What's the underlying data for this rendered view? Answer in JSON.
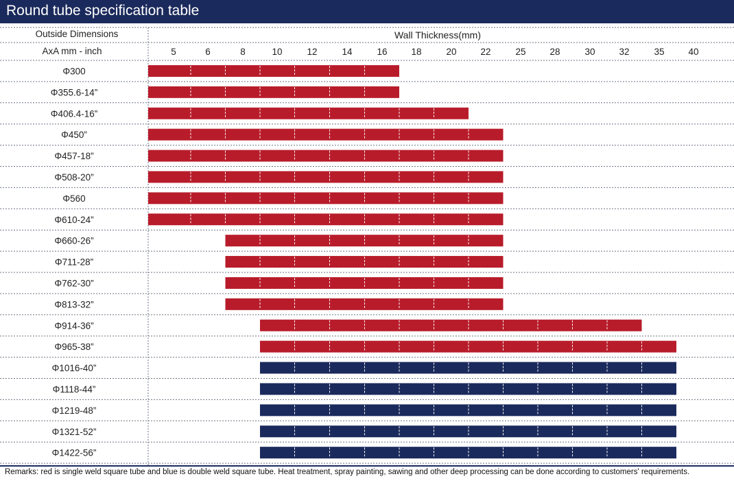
{
  "title": "Round tube specification table",
  "remarks": "Remarks: red is single weld square tube and blue is double weld square tube. Heat treatment, spray painting, sawing and other deep processing can be done according to customers' requirements.",
  "colors": {
    "single_weld": "#b81c2a",
    "double_weld": "#1b2a5c",
    "header": "#1b2a5c",
    "grid": "#6b7280"
  },
  "chart_data": {
    "type": "bar",
    "row_header_line1": "Outside Dimensions",
    "row_header_line2": "AxA  mm - inch",
    "column_header": "Wall  Thickness(mm)",
    "thickness_ticks": [
      "5",
      "6",
      "8",
      "10",
      "12",
      "14",
      "16",
      "18",
      "20",
      "22",
      "25",
      "28",
      "30",
      "32",
      "35",
      "40"
    ],
    "rows": [
      {
        "label": "Φ300",
        "start": "5",
        "end": "16",
        "type": "single"
      },
      {
        "label": "Φ355.6-14”",
        "start": "5",
        "end": "16",
        "type": "single"
      },
      {
        "label": "Φ406.4-16”",
        "start": "5",
        "end": "20",
        "type": "single"
      },
      {
        "label": "Φ450”",
        "start": "5",
        "end": "22",
        "type": "single"
      },
      {
        "label": "Φ457-18”",
        "start": "5",
        "end": "22",
        "type": "single"
      },
      {
        "label": "Φ508-20”",
        "start": "5",
        "end": "22",
        "type": "single"
      },
      {
        "label": "Φ560",
        "start": "5",
        "end": "22",
        "type": "single"
      },
      {
        "label": "Φ610-24”",
        "start": "5",
        "end": "22",
        "type": "single"
      },
      {
        "label": "Φ660-26”",
        "start": "8",
        "end": "22",
        "type": "single"
      },
      {
        "label": "Φ711-28”",
        "start": "8",
        "end": "22",
        "type": "single"
      },
      {
        "label": "Φ762-30”",
        "start": "8",
        "end": "22",
        "type": "single"
      },
      {
        "label": "Φ813-32”",
        "start": "8",
        "end": "22",
        "type": "single"
      },
      {
        "label": "Φ914-36”",
        "start": "10",
        "end": "32",
        "type": "single"
      },
      {
        "label": "Φ965-38”",
        "start": "10",
        "end": "35",
        "type": "single"
      },
      {
        "label": "Φ1016-40”",
        "start": "10",
        "end": "35",
        "type": "double"
      },
      {
        "label": "Φ1118-44”",
        "start": "10",
        "end": "35",
        "type": "double"
      },
      {
        "label": "Φ1219-48”",
        "start": "10",
        "end": "35",
        "type": "double"
      },
      {
        "label": "Φ1321-52”",
        "start": "10",
        "end": "35",
        "type": "double"
      },
      {
        "label": "Φ1422-56”",
        "start": "10",
        "end": "35",
        "type": "double"
      }
    ]
  }
}
